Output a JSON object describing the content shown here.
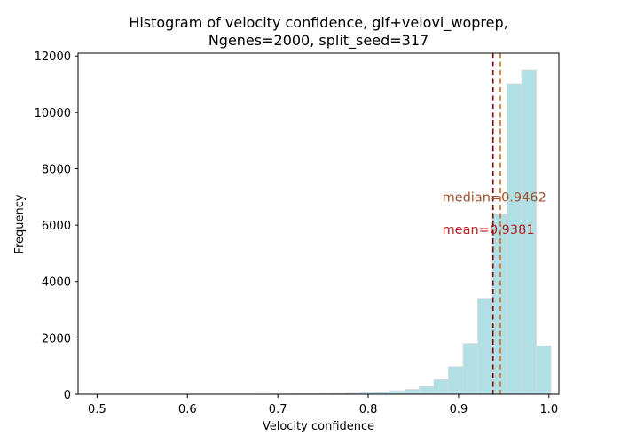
{
  "chart_data": {
    "type": "histogram",
    "title_line1": "Histogram of velocity confidence, glf+velovi_woprep,",
    "title_line2": "Ngenes=2000, split_seed=317",
    "xlabel": "Velocity confidence",
    "ylabel": "Frequency",
    "xlim": [
      0.479,
      1.011
    ],
    "ylim": [
      0,
      12100
    ],
    "x_ticks": [
      0.5,
      0.6,
      0.7,
      0.8,
      0.9,
      1.0
    ],
    "x_tick_labels": [
      "0.5",
      "0.6",
      "0.7",
      "0.8",
      "0.9",
      "1.0"
    ],
    "y_ticks": [
      0,
      2000,
      4000,
      6000,
      8000,
      10000,
      12000
    ],
    "y_tick_labels": [
      "0",
      "2000",
      "4000",
      "6000",
      "8000",
      "10000",
      "12000"
    ],
    "bin_width": 0.0162,
    "bin_edges_start": 0.5,
    "counts": [
      2,
      2,
      2,
      2,
      2,
      2,
      2,
      2,
      2,
      2,
      3,
      5,
      10,
      15,
      20,
      25,
      30,
      40,
      60,
      80,
      120,
      170,
      270,
      520,
      980,
      1800,
      3400,
      6400,
      11000,
      11500,
      1720
    ],
    "bar_color": "#b0e0e6",
    "bar_edge_color": "#d8d8d8",
    "median": {
      "value": 0.9462,
      "label": "median=0.9462",
      "color": "#d2691e",
      "text_color": "#a0522d"
    },
    "mean": {
      "value": 0.9381,
      "label": "mean=0.9381",
      "color": "#8b0000",
      "text_color": "#b22222"
    },
    "annotation_x": 0.882,
    "median_label_y": 7000,
    "mean_label_y": 5850
  }
}
